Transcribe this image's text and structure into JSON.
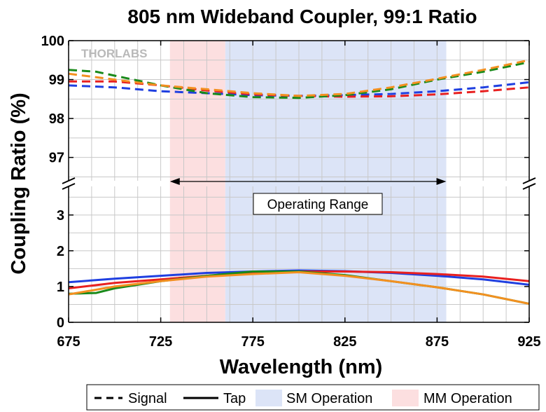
{
  "chart_data": {
    "type": "line",
    "title": "805 nm Wideband Coupler, 99:1 Ratio",
    "xlabel": "Wavelength (nm)",
    "ylabel": "Coupling Ratio (%)",
    "xlim": [
      675,
      925
    ],
    "x_ticks": [
      675,
      725,
      775,
      825,
      875,
      925
    ],
    "upper_panel": {
      "ylim": [
        96.4,
        100
      ],
      "y_ticks": [
        97,
        98,
        99,
        100
      ]
    },
    "lower_panel": {
      "ylim": [
        0,
        3.8
      ],
      "y_ticks": [
        0,
        1,
        2,
        3
      ]
    },
    "grid": true,
    "watermark": "THORLABS",
    "bands": [
      {
        "name": "SM Operation",
        "range": [
          760,
          880
        ],
        "color": "#dce4f7"
      },
      {
        "name": "MM Operation",
        "range": [
          730,
          760
        ],
        "color": "#fcdfe0"
      }
    ],
    "annotation": {
      "text": "Operating Range",
      "range": [
        730,
        880
      ]
    },
    "legend": {
      "position": "bottom",
      "entries": [
        "Signal",
        "Tap",
        "SM Operation",
        "MM Operation"
      ]
    },
    "series": [
      {
        "color": "#1f3fe0",
        "style": "dashed",
        "panel": "upper",
        "x": [
          675,
          700,
          725,
          750,
          775,
          800,
          825,
          850,
          875,
          900,
          925
        ],
        "y": [
          98.85,
          98.8,
          98.7,
          98.65,
          98.6,
          98.58,
          98.6,
          98.63,
          98.7,
          98.8,
          98.93
        ]
      },
      {
        "color": "#e82020",
        "style": "dashed",
        "panel": "upper",
        "x": [
          675,
          700,
          725,
          750,
          775,
          800,
          825,
          850,
          875,
          900,
          925
        ],
        "y": [
          98.95,
          98.95,
          98.85,
          98.72,
          98.62,
          98.58,
          98.56,
          98.57,
          98.62,
          98.7,
          98.8
        ]
      },
      {
        "color": "#1a8a1a",
        "style": "dashed",
        "panel": "upper",
        "x": [
          675,
          690,
          700,
          725,
          750,
          775,
          800,
          825,
          850,
          875,
          900,
          925
        ],
        "y": [
          99.25,
          99.2,
          99.1,
          98.85,
          98.65,
          98.55,
          98.53,
          98.6,
          98.75,
          99.0,
          99.2,
          99.45
        ]
      },
      {
        "color": "#f39020",
        "style": "dashed",
        "panel": "upper",
        "x": [
          675,
          700,
          725,
          750,
          775,
          800,
          825,
          850,
          875,
          900,
          925
        ],
        "y": [
          99.15,
          99.0,
          98.85,
          98.75,
          98.65,
          98.58,
          98.63,
          98.8,
          99.02,
          99.25,
          99.5
        ]
      },
      {
        "color": "#1f3fe0",
        "style": "solid",
        "panel": "lower",
        "x": [
          675,
          700,
          725,
          750,
          775,
          800,
          825,
          850,
          875,
          900,
          925
        ],
        "y": [
          1.12,
          1.22,
          1.3,
          1.38,
          1.42,
          1.45,
          1.43,
          1.38,
          1.3,
          1.2,
          1.05
        ]
      },
      {
        "color": "#e82020",
        "style": "solid",
        "panel": "lower",
        "x": [
          675,
          700,
          725,
          750,
          775,
          800,
          825,
          850,
          875,
          900,
          925
        ],
        "y": [
          0.95,
          1.1,
          1.2,
          1.3,
          1.38,
          1.42,
          1.42,
          1.4,
          1.35,
          1.28,
          1.15
        ]
      },
      {
        "color": "#1a8a1a",
        "style": "solid",
        "panel": "lower",
        "x": [
          675,
          690,
          700,
          725,
          750,
          775,
          800,
          825,
          850,
          875,
          900,
          925
        ],
        "y": [
          0.8,
          0.82,
          0.95,
          1.15,
          1.3,
          1.42,
          1.42,
          1.32,
          1.15,
          0.98,
          0.78,
          0.52
        ]
      },
      {
        "color": "#f39020",
        "style": "solid",
        "panel": "lower",
        "x": [
          675,
          700,
          725,
          750,
          775,
          800,
          825,
          850,
          875,
          900,
          925
        ],
        "y": [
          0.78,
          1.0,
          1.15,
          1.28,
          1.35,
          1.4,
          1.3,
          1.15,
          0.98,
          0.78,
          0.52
        ]
      }
    ]
  }
}
